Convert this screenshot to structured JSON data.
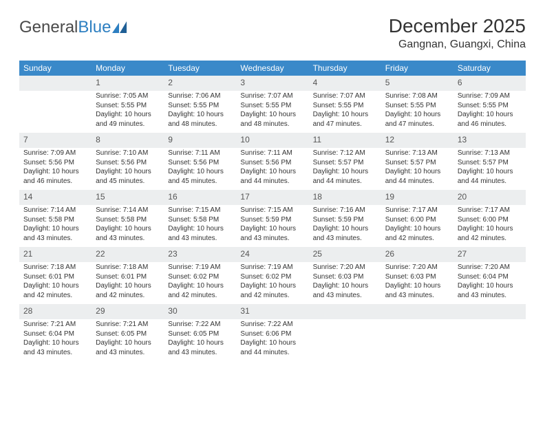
{
  "brand": {
    "part1": "General",
    "part2": "Blue"
  },
  "title": "December 2025",
  "location": "Gangnan, Guangxi, China",
  "colors": {
    "header_bg": "#3a89c9",
    "header_text": "#ffffff",
    "daynum_bg": "#eceeef",
    "daynum_border": "#3a6fa0",
    "text": "#333333",
    "brand_gray": "#4a4a4a",
    "brand_blue": "#2d7fc1",
    "bg": "#ffffff"
  },
  "day_headers": [
    "Sunday",
    "Monday",
    "Tuesday",
    "Wednesday",
    "Thursday",
    "Friday",
    "Saturday"
  ],
  "weeks": [
    {
      "nums": [
        "",
        "1",
        "2",
        "3",
        "4",
        "5",
        "6"
      ],
      "cells": [
        null,
        {
          "sunrise": "Sunrise: 7:05 AM",
          "sunset": "Sunset: 5:55 PM",
          "dl1": "Daylight: 10 hours",
          "dl2": "and 49 minutes."
        },
        {
          "sunrise": "Sunrise: 7:06 AM",
          "sunset": "Sunset: 5:55 PM",
          "dl1": "Daylight: 10 hours",
          "dl2": "and 48 minutes."
        },
        {
          "sunrise": "Sunrise: 7:07 AM",
          "sunset": "Sunset: 5:55 PM",
          "dl1": "Daylight: 10 hours",
          "dl2": "and 48 minutes."
        },
        {
          "sunrise": "Sunrise: 7:07 AM",
          "sunset": "Sunset: 5:55 PM",
          "dl1": "Daylight: 10 hours",
          "dl2": "and 47 minutes."
        },
        {
          "sunrise": "Sunrise: 7:08 AM",
          "sunset": "Sunset: 5:55 PM",
          "dl1": "Daylight: 10 hours",
          "dl2": "and 47 minutes."
        },
        {
          "sunrise": "Sunrise: 7:09 AM",
          "sunset": "Sunset: 5:55 PM",
          "dl1": "Daylight: 10 hours",
          "dl2": "and 46 minutes."
        }
      ]
    },
    {
      "nums": [
        "7",
        "8",
        "9",
        "10",
        "11",
        "12",
        "13"
      ],
      "cells": [
        {
          "sunrise": "Sunrise: 7:09 AM",
          "sunset": "Sunset: 5:56 PM",
          "dl1": "Daylight: 10 hours",
          "dl2": "and 46 minutes."
        },
        {
          "sunrise": "Sunrise: 7:10 AM",
          "sunset": "Sunset: 5:56 PM",
          "dl1": "Daylight: 10 hours",
          "dl2": "and 45 minutes."
        },
        {
          "sunrise": "Sunrise: 7:11 AM",
          "sunset": "Sunset: 5:56 PM",
          "dl1": "Daylight: 10 hours",
          "dl2": "and 45 minutes."
        },
        {
          "sunrise": "Sunrise: 7:11 AM",
          "sunset": "Sunset: 5:56 PM",
          "dl1": "Daylight: 10 hours",
          "dl2": "and 44 minutes."
        },
        {
          "sunrise": "Sunrise: 7:12 AM",
          "sunset": "Sunset: 5:57 PM",
          "dl1": "Daylight: 10 hours",
          "dl2": "and 44 minutes."
        },
        {
          "sunrise": "Sunrise: 7:13 AM",
          "sunset": "Sunset: 5:57 PM",
          "dl1": "Daylight: 10 hours",
          "dl2": "and 44 minutes."
        },
        {
          "sunrise": "Sunrise: 7:13 AM",
          "sunset": "Sunset: 5:57 PM",
          "dl1": "Daylight: 10 hours",
          "dl2": "and 44 minutes."
        }
      ]
    },
    {
      "nums": [
        "14",
        "15",
        "16",
        "17",
        "18",
        "19",
        "20"
      ],
      "cells": [
        {
          "sunrise": "Sunrise: 7:14 AM",
          "sunset": "Sunset: 5:58 PM",
          "dl1": "Daylight: 10 hours",
          "dl2": "and 43 minutes."
        },
        {
          "sunrise": "Sunrise: 7:14 AM",
          "sunset": "Sunset: 5:58 PM",
          "dl1": "Daylight: 10 hours",
          "dl2": "and 43 minutes."
        },
        {
          "sunrise": "Sunrise: 7:15 AM",
          "sunset": "Sunset: 5:58 PM",
          "dl1": "Daylight: 10 hours",
          "dl2": "and 43 minutes."
        },
        {
          "sunrise": "Sunrise: 7:15 AM",
          "sunset": "Sunset: 5:59 PM",
          "dl1": "Daylight: 10 hours",
          "dl2": "and 43 minutes."
        },
        {
          "sunrise": "Sunrise: 7:16 AM",
          "sunset": "Sunset: 5:59 PM",
          "dl1": "Daylight: 10 hours",
          "dl2": "and 43 minutes."
        },
        {
          "sunrise": "Sunrise: 7:17 AM",
          "sunset": "Sunset: 6:00 PM",
          "dl1": "Daylight: 10 hours",
          "dl2": "and 42 minutes."
        },
        {
          "sunrise": "Sunrise: 7:17 AM",
          "sunset": "Sunset: 6:00 PM",
          "dl1": "Daylight: 10 hours",
          "dl2": "and 42 minutes."
        }
      ]
    },
    {
      "nums": [
        "21",
        "22",
        "23",
        "24",
        "25",
        "26",
        "27"
      ],
      "cells": [
        {
          "sunrise": "Sunrise: 7:18 AM",
          "sunset": "Sunset: 6:01 PM",
          "dl1": "Daylight: 10 hours",
          "dl2": "and 42 minutes."
        },
        {
          "sunrise": "Sunrise: 7:18 AM",
          "sunset": "Sunset: 6:01 PM",
          "dl1": "Daylight: 10 hours",
          "dl2": "and 42 minutes."
        },
        {
          "sunrise": "Sunrise: 7:19 AM",
          "sunset": "Sunset: 6:02 PM",
          "dl1": "Daylight: 10 hours",
          "dl2": "and 42 minutes."
        },
        {
          "sunrise": "Sunrise: 7:19 AM",
          "sunset": "Sunset: 6:02 PM",
          "dl1": "Daylight: 10 hours",
          "dl2": "and 42 minutes."
        },
        {
          "sunrise": "Sunrise: 7:20 AM",
          "sunset": "Sunset: 6:03 PM",
          "dl1": "Daylight: 10 hours",
          "dl2": "and 43 minutes."
        },
        {
          "sunrise": "Sunrise: 7:20 AM",
          "sunset": "Sunset: 6:03 PM",
          "dl1": "Daylight: 10 hours",
          "dl2": "and 43 minutes."
        },
        {
          "sunrise": "Sunrise: 7:20 AM",
          "sunset": "Sunset: 6:04 PM",
          "dl1": "Daylight: 10 hours",
          "dl2": "and 43 minutes."
        }
      ]
    },
    {
      "nums": [
        "28",
        "29",
        "30",
        "31",
        "",
        "",
        ""
      ],
      "cells": [
        {
          "sunrise": "Sunrise: 7:21 AM",
          "sunset": "Sunset: 6:04 PM",
          "dl1": "Daylight: 10 hours",
          "dl2": "and 43 minutes."
        },
        {
          "sunrise": "Sunrise: 7:21 AM",
          "sunset": "Sunset: 6:05 PM",
          "dl1": "Daylight: 10 hours",
          "dl2": "and 43 minutes."
        },
        {
          "sunrise": "Sunrise: 7:22 AM",
          "sunset": "Sunset: 6:05 PM",
          "dl1": "Daylight: 10 hours",
          "dl2": "and 43 minutes."
        },
        {
          "sunrise": "Sunrise: 7:22 AM",
          "sunset": "Sunset: 6:06 PM",
          "dl1": "Daylight: 10 hours",
          "dl2": "and 44 minutes."
        },
        null,
        null,
        null
      ]
    }
  ]
}
